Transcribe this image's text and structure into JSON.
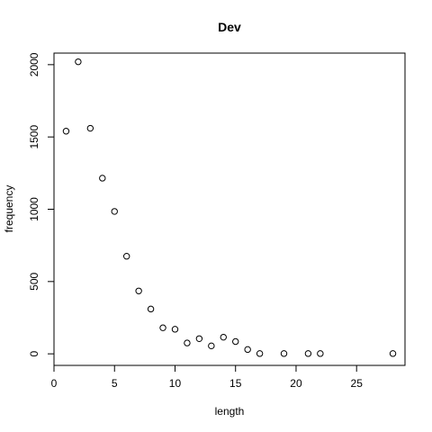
{
  "chart_data": {
    "type": "scatter",
    "title": "Dev",
    "xlabel": "length",
    "ylabel": "frequency",
    "xlim": [
      0,
      29
    ],
    "ylim": [
      -80,
      2080
    ],
    "xticks": [
      0,
      5,
      10,
      15,
      20,
      25
    ],
    "yticks": [
      0,
      500,
      1000,
      1500,
      2000
    ],
    "grid": false,
    "points": [
      {
        "x": 1,
        "y": 1540
      },
      {
        "x": 2,
        "y": 2020
      },
      {
        "x": 3,
        "y": 1560
      },
      {
        "x": 4,
        "y": 1215
      },
      {
        "x": 5,
        "y": 985
      },
      {
        "x": 6,
        "y": 675
      },
      {
        "x": 7,
        "y": 435
      },
      {
        "x": 8,
        "y": 310
      },
      {
        "x": 9,
        "y": 180
      },
      {
        "x": 10,
        "y": 170
      },
      {
        "x": 11,
        "y": 75
      },
      {
        "x": 12,
        "y": 105
      },
      {
        "x": 13,
        "y": 55
      },
      {
        "x": 14,
        "y": 115
      },
      {
        "x": 15,
        "y": 85
      },
      {
        "x": 16,
        "y": 30
      },
      {
        "x": 17,
        "y": 2
      },
      {
        "x": 19,
        "y": 2
      },
      {
        "x": 21,
        "y": 2
      },
      {
        "x": 22,
        "y": 2
      },
      {
        "x": 28,
        "y": 2
      }
    ]
  }
}
